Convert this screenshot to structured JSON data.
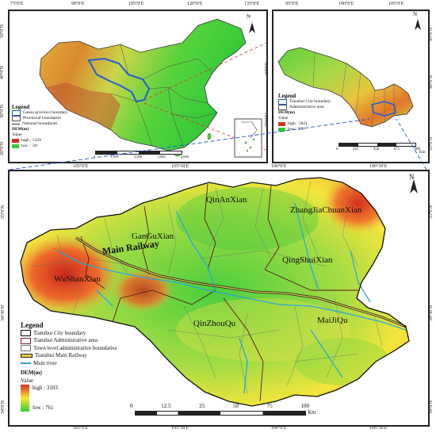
{
  "china_panel": {
    "lon_ticks": [
      "75°0′E",
      "90°0′E",
      "105°0′E",
      "120°0′E",
      "135°0′E"
    ],
    "lat_ticks": [
      "50°0′N",
      "40°0′N",
      "30°0′N",
      "20°0′N"
    ],
    "legend": {
      "title": "Legend",
      "items": [
        "Gansu province boundary",
        "Provincial boundaries",
        "National boundaries"
      ],
      "dem_title": "DEM(m)",
      "value_label": "Value",
      "high": "high : 5329",
      "low": "low : -29"
    },
    "scale": [
      "0",
      "1,000",
      "2,000",
      "3,000",
      "4,000"
    ]
  },
  "gansu_panel": {
    "lon_ticks": [
      "95°0′E",
      "100°0′E",
      "105°0′E"
    ],
    "lat_ticks": [
      "40°0′N",
      "35°0′N"
    ],
    "right_lat_ticks": [
      "45°0′N",
      "40°0′N",
      "35°0′N"
    ],
    "legend": {
      "title": "Legend",
      "items": [
        "Tianshui City boundary",
        "Administrative area"
      ],
      "dem_title": "DEM(m)",
      "value_label": "Value",
      "high": "high : 5821",
      "low": "low : 578"
    },
    "scale": [
      "0",
      "225",
      "450",
      "675",
      "900"
    ],
    "scale_unit": "Km"
  },
  "tianshui_panel": {
    "top_lon_ticks": [
      "105°0′E",
      "105°30′E",
      "106°0′E",
      "106°30′E"
    ],
    "bottom_lon_ticks": [
      "105°0′E",
      "105°30′E",
      "106°0′E",
      "106°30′E"
    ],
    "left_lat_ticks": [
      "35°0′N",
      "34°30′N",
      "34°0′N"
    ],
    "right_lat_ticks": [
      "35°0′N",
      "34°30′N",
      "34°0′N"
    ],
    "places": {
      "qinan": "QinAnXian",
      "zhangjiachuan": "ZhangJiaChuanXian",
      "gangu": "GanGuXian",
      "main_railway": "Main Railway",
      "qingshui": "QingShuiXian",
      "wushan": "WuShanXian",
      "qinzhou": "QinZhouQu",
      "maiji": "MaiJiQu"
    },
    "legend": {
      "title": "Legend",
      "items": [
        "Tianshui City boundary",
        "Tianshui Administrative area",
        "Town level administrative boundaries",
        "Tianshui Main Railway",
        "Main river"
      ],
      "dem_title": "DEM(m)",
      "value_label": "Value",
      "high": "high : 3103",
      "low": "low : 761"
    },
    "scale": [
      "0",
      "12.5",
      "25",
      "50",
      "75",
      "100"
    ],
    "scale_unit": "Km"
  },
  "north_label": "N",
  "colors": {
    "dem_high": "#d7301f",
    "dem_mid": "#f5e83a",
    "dem_low": "#33cc33",
    "river": "#2aa7d8",
    "gansu": "#1f5fd6"
  }
}
